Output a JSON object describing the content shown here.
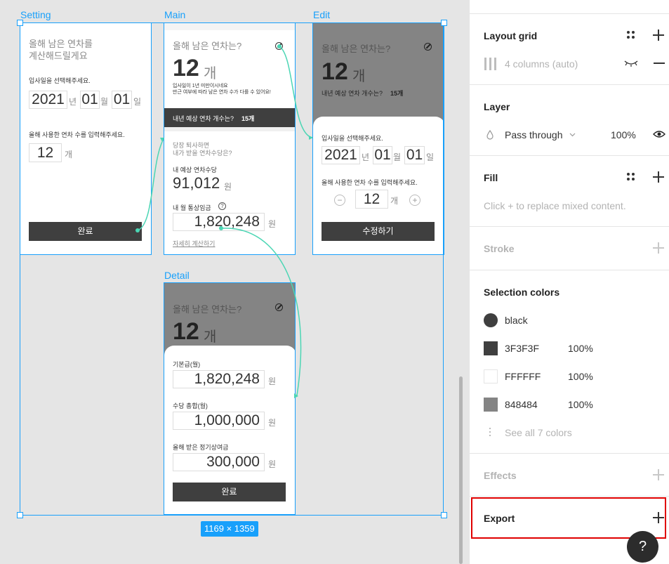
{
  "frames": {
    "setting": "Setting",
    "main": "Main",
    "edit": "Edit",
    "detail": "Detail"
  },
  "selection_size": "1169 × 1359",
  "setting": {
    "title_line1": "올해 남은 연차를",
    "title_line2": "계산해드릴게요",
    "join_label": "입사일을 선택해주세요.",
    "year": "2021",
    "year_unit": "년",
    "month": "01",
    "month_unit": "월",
    "day": "01",
    "day_unit": "일",
    "used_label": "올해 사용한 연차 수를 입력해주세요.",
    "used_value": "12",
    "used_unit": "개",
    "done": "완료"
  },
  "main": {
    "question": "올해 남은 연차는?",
    "count": "12",
    "count_unit": "개",
    "note_line1": "입사일이 1년 미만이시네요",
    "note_line2": "만근 여부에 따라 남은 연차 수가 다를 수 있어요!",
    "next_year_label": "내년 예상 연차 개수는?",
    "next_year_value": "15개",
    "quit_line1": "당장 퇴사하면",
    "quit_line2": "내가 받을 연차수당은?",
    "allowance_label": "내 예상 연차수당",
    "allowance_value": "91,012",
    "allowance_unit": "원",
    "wage_label": "내 월 통상임금",
    "wage_help": "?",
    "wage_value": "1,820,248",
    "wage_unit": "원",
    "detail_link": "자세히 계산하기"
  },
  "edit": {
    "question": "올해 남은 연차는?",
    "count": "12",
    "count_unit": "개",
    "next_year_label": "내년 예상 연차 개수는?",
    "next_year_value": "15개",
    "join_label": "입사일을 선택해주세요.",
    "year": "2021",
    "year_unit": "년",
    "month": "01",
    "month_unit": "월",
    "day": "01",
    "day_unit": "일",
    "used_label": "올해 사용한 연차 수를 입력해주세요.",
    "minus": "−",
    "plus": "+",
    "used_value": "12",
    "used_unit": "개",
    "submit": "수정하기"
  },
  "detail": {
    "question": "올해 남은 연차는?",
    "count": "12",
    "count_unit": "개",
    "base_label": "기본급(월)",
    "base_value": "1,820,248",
    "base_unit": "원",
    "extra_label": "수당 총합(월)",
    "extra_value": "1,000,000",
    "extra_unit": "원",
    "bonus_label": "올해 받은 정기상여금",
    "bonus_value": "300,000",
    "bonus_unit": "원",
    "done": "완료"
  },
  "panel": {
    "layout_grid": {
      "title": "Layout grid",
      "item": "4 columns (auto)"
    },
    "layer": {
      "title": "Layer",
      "blend": "Pass through",
      "opacity": "100%"
    },
    "fill": {
      "title": "Fill",
      "hint": "Click + to replace mixed content."
    },
    "stroke": {
      "title": "Stroke"
    },
    "selection_colors": {
      "title": "Selection colors",
      "items": [
        {
          "name": "black",
          "opacity": "",
          "color": "#3f3f3f"
        },
        {
          "name": "3F3F3F",
          "opacity": "100%",
          "color": "#3f3f3f"
        },
        {
          "name": "FFFFFF",
          "opacity": "100%",
          "color": "#ffffff"
        },
        {
          "name": "848484",
          "opacity": "100%",
          "color": "#848484"
        }
      ],
      "see_all": "See all 7 colors"
    },
    "effects": {
      "title": "Effects"
    },
    "export": {
      "title": "Export"
    },
    "help": "?"
  },
  "colors": {
    "accent": "#18a0fb",
    "dark": "#3f3f3f",
    "gray": "#848484",
    "proto": "#4bd6b4",
    "highlight": "#e00000"
  }
}
